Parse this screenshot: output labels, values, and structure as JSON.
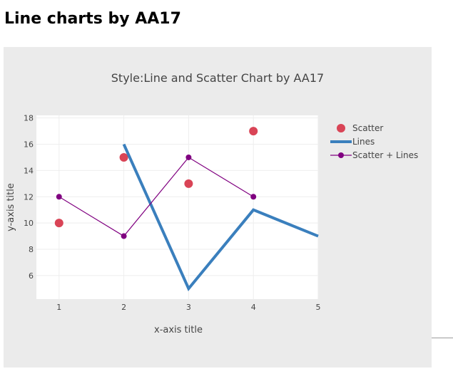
{
  "page": {
    "heading": "Line charts by AA17"
  },
  "colors": {
    "plot_bg": "#ebebeb",
    "axes_bg": "#ffffff",
    "grid": "#eeeeee",
    "scatter": "#d94456",
    "lines": "#3a7fbd",
    "scatter_lines": "#800080"
  },
  "chart_data": {
    "type": "line",
    "title": "Style:Line and Scatter Chart by AA17",
    "xlabel": "x-axis title",
    "ylabel": "y-axis title",
    "xlim": [
      0.65,
      5
    ],
    "ylim": [
      4.2,
      18.2
    ],
    "xticks": [
      1,
      2,
      3,
      4,
      5
    ],
    "yticks": [
      6,
      8,
      10,
      12,
      14,
      16,
      18
    ],
    "grid": true,
    "legend_position": "right",
    "series": [
      {
        "name": "Scatter",
        "mode": "markers",
        "x": [
          1,
          2,
          3,
          4
        ],
        "y": [
          10,
          15,
          13,
          17
        ],
        "color": "#d94456"
      },
      {
        "name": "Lines",
        "mode": "lines",
        "x": [
          2,
          3,
          4,
          5
        ],
        "y": [
          16,
          5,
          11,
          9
        ],
        "color": "#3a7fbd"
      },
      {
        "name": "Scatter + Lines",
        "mode": "lines+markers",
        "x": [
          1,
          2,
          3,
          4
        ],
        "y": [
          12,
          9,
          15,
          12
        ],
        "color": "#800080"
      }
    ]
  }
}
